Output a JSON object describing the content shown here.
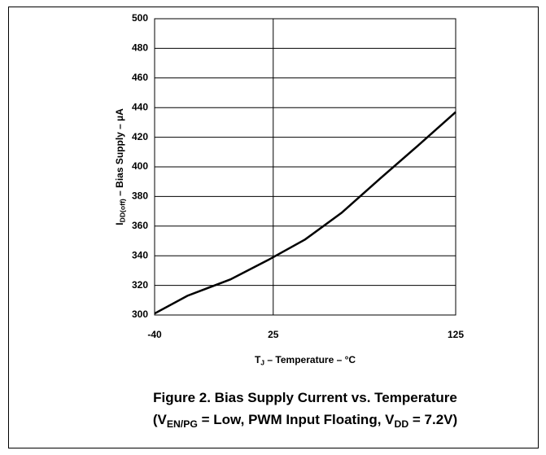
{
  "chart_data": {
    "type": "line",
    "x_label": [
      {
        "text": "T",
        "sub": false
      },
      {
        "text": "J",
        "sub": true
      },
      {
        "text": " – Temperature – °C",
        "sub": false
      }
    ],
    "y_label": [
      {
        "text": "I",
        "sub": false
      },
      {
        "text": "DD(off)",
        "sub": true
      },
      {
        "text": " – Bias Supply – µA",
        "sub": false
      }
    ],
    "caption": [
      [
        {
          "text": "Figure 2. Bias Supply Current vs. Temperature",
          "sub": false
        }
      ],
      [
        {
          "text": "(V",
          "sub": false
        },
        {
          "text": "EN/PG",
          "sub": true
        },
        {
          "text": " = Low, PWM Input Floating, V",
          "sub": false
        },
        {
          "text": "DD",
          "sub": true
        },
        {
          "text": " = 7.2V)",
          "sub": false
        }
      ]
    ],
    "x": [
      -40,
      -22,
      1.5,
      22,
      42.5,
      62.5,
      83.5,
      104,
      125
    ],
    "series": [
      {
        "color": "#000000",
        "values": [
          301,
          313,
          324,
          337,
          351,
          369,
          392,
          414,
          437
        ]
      }
    ],
    "xlim": [
      -40,
      125
    ],
    "xticks": [
      -40,
      25,
      125
    ],
    "ylim": [
      300,
      500
    ],
    "yticks": [
      300,
      320,
      340,
      360,
      380,
      400,
      420,
      440,
      460,
      480,
      500
    ],
    "grid": true
  }
}
